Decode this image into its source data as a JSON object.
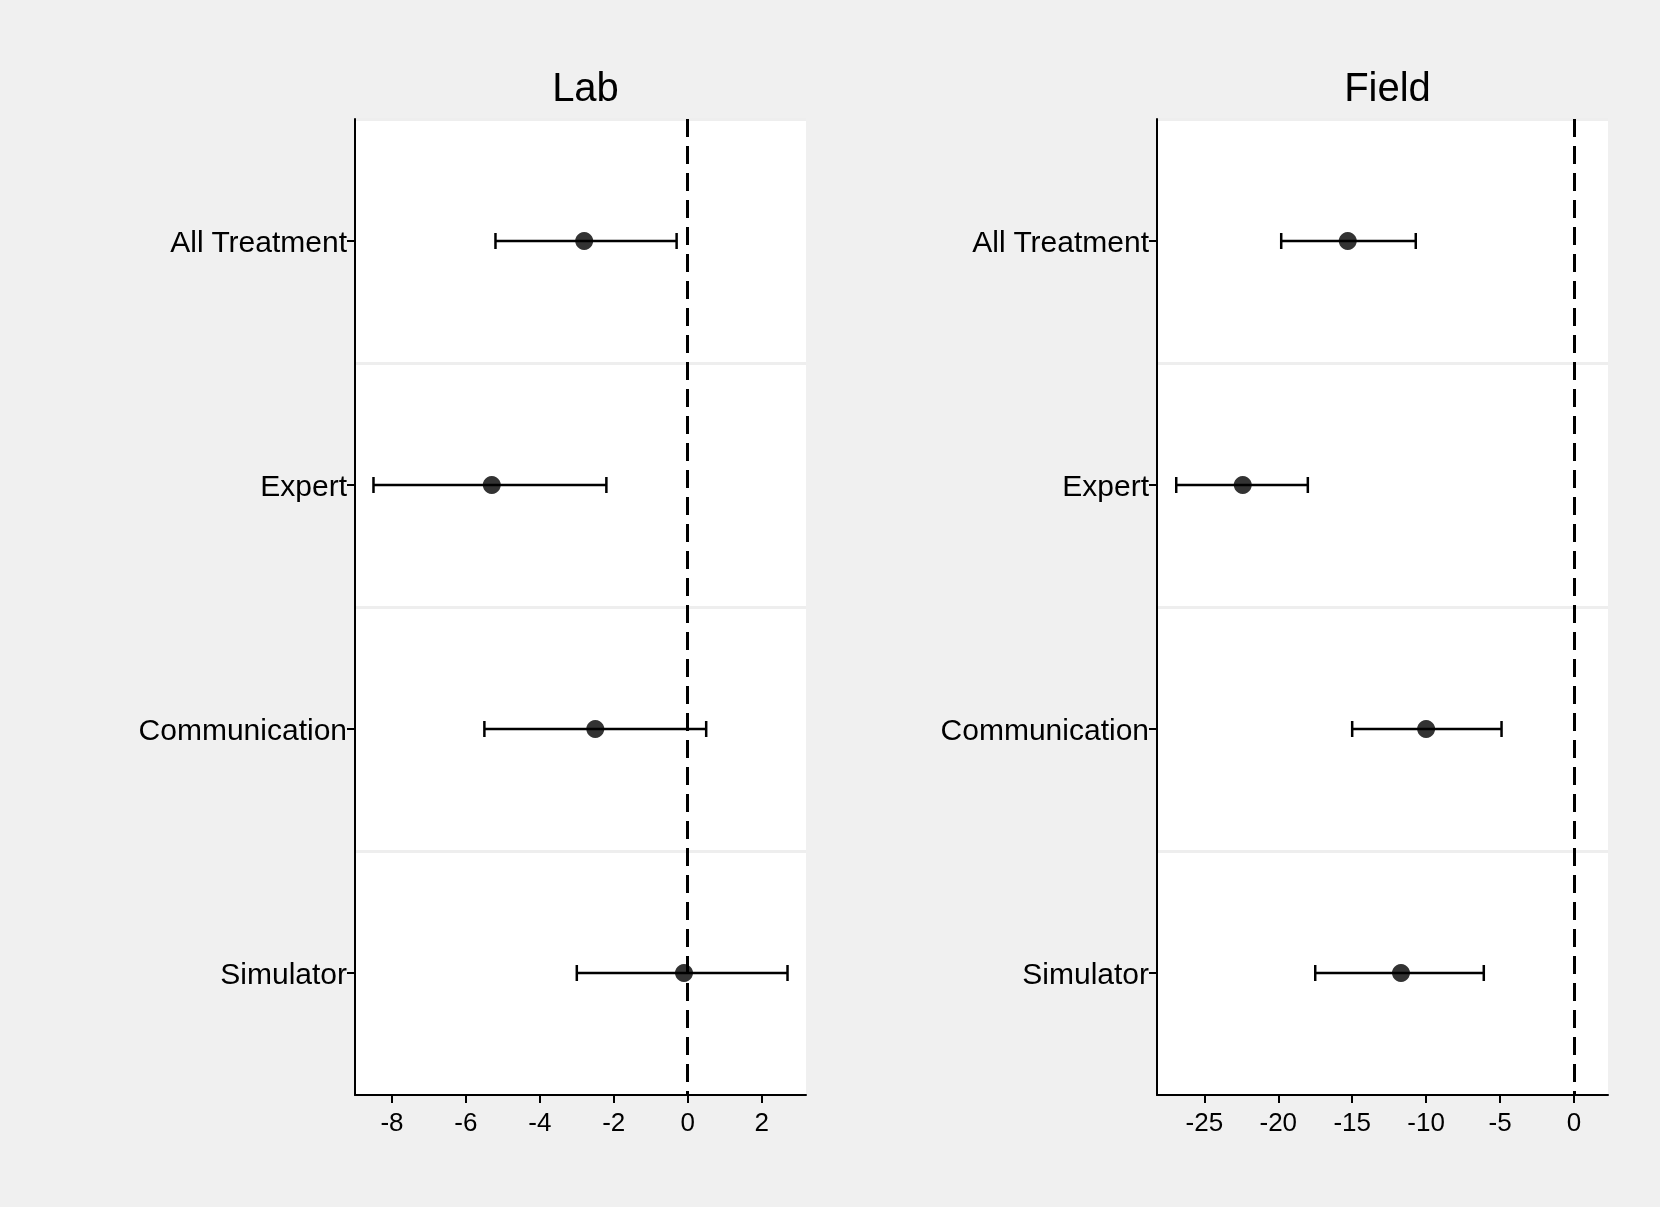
{
  "chart_data": [
    {
      "type": "scatter",
      "title": "Lab",
      "orientation": "horizontal",
      "categories": [
        "All Treatment",
        "Expert",
        "Communication",
        "Simulator"
      ],
      "values": [
        -2.8,
        -5.3,
        -2.5,
        -0.1
      ],
      "errors": [
        [
          -5.2,
          -0.3
        ],
        [
          -8.5,
          -2.2
        ],
        [
          -5.5,
          0.5
        ],
        [
          -3.0,
          2.7
        ]
      ],
      "color": "#000000",
      "marker": "circle",
      "xlim": [
        -9,
        3.2
      ],
      "xticks": [
        -8,
        -6,
        -4,
        -2,
        0,
        2
      ],
      "grid": "y",
      "ref_lines": [
        {
          "axis": "x",
          "value": 0,
          "color": "#000000",
          "line_style": "dashed"
        }
      ]
    },
    {
      "type": "scatter",
      "title": "Field",
      "orientation": "horizontal",
      "categories": [
        "All Treatment",
        "Expert",
        "Communication",
        "Simulator"
      ],
      "values": [
        -15.3,
        -22.4,
        -10.0,
        -11.7
      ],
      "errors": [
        [
          -19.8,
          -10.7
        ],
        [
          -26.9,
          -18.0
        ],
        [
          -15.0,
          -4.9
        ],
        [
          -17.5,
          -6.1
        ]
      ],
      "color": "#000000",
      "marker": "circle",
      "xlim": [
        -28.2,
        2.3
      ],
      "xticks": [
        -25,
        -20,
        -15,
        -10,
        -5,
        0
      ],
      "grid": "y",
      "ref_lines": [
        {
          "axis": "x",
          "value": 0,
          "color": "#000000",
          "line_style": "dashed"
        }
      ]
    }
  ]
}
